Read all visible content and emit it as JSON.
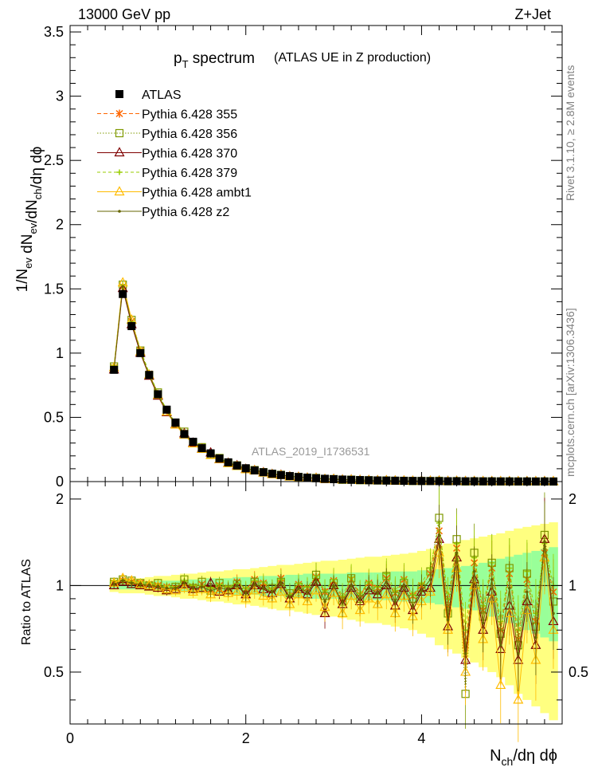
{
  "header": {
    "left": "13000 GeV pp",
    "right": "Z+Jet"
  },
  "side": {
    "rivet": "Rivet 3.1.10, ≥ 2.8M events",
    "mcplots": "mcplots.cern.ch [arXiv:1306.3436]"
  },
  "colors": {
    "data": "#000000",
    "band_outer": "#ffff80",
    "band_inner": "#99ff99",
    "s355": "#ff6600",
    "s356": "#7f9900",
    "s370": "#7f0000",
    "s379": "#99cc00",
    "ambt1": "#ffbb00",
    "z2": "#666600"
  },
  "chart_data": {
    "type": "line",
    "title_main": "p",
    "title_sub": "T",
    "title_rest": " spectrum",
    "subtitle": "(ATLAS UE in Z production)",
    "watermark": "ATLAS_2019_I1736531",
    "xlabel": {
      "main": "N",
      "sub": "ch",
      "rest": "/dη dϕ"
    },
    "ylabel": "1/N_ev dN_ev/dN_ch/dη dϕ",
    "ratio_ylabel": "Ratio to ATLAS",
    "xlim": [
      0,
      5.6
    ],
    "ylim": [
      0,
      3.55
    ],
    "ratio_ylim": [
      0.33,
      2.3
    ],
    "xticks": [
      "0",
      "2",
      "4"
    ],
    "yticks": [
      "0",
      "0.5",
      "1",
      "1.5",
      "2",
      "2.5",
      "3",
      "3.5"
    ],
    "ratio_yticks": [
      "0.5",
      "1",
      "2"
    ],
    "legend": [
      "ATLAS",
      "Pythia 6.428 355",
      "Pythia 6.428 356",
      "Pythia 6.428 370",
      "Pythia 6.428 379",
      "Pythia 6.428 ambt1",
      "Pythia 6.428 z2"
    ],
    "x": [
      0.5,
      0.6,
      0.7,
      0.8,
      0.9,
      1.0,
      1.1,
      1.2,
      1.3,
      1.4,
      1.5,
      1.6,
      1.7,
      1.8,
      1.9,
      2.0,
      2.1,
      2.2,
      2.3,
      2.4,
      2.5,
      2.6,
      2.7,
      2.8,
      2.9,
      3.0,
      3.1,
      3.2,
      3.3,
      3.4,
      3.5,
      3.6,
      3.7,
      3.8,
      3.9,
      4.0,
      4.1,
      4.2,
      4.3,
      4.4,
      4.5,
      4.6,
      4.7,
      4.8,
      4.9,
      5.0,
      5.1,
      5.2,
      5.3,
      5.4,
      5.5
    ],
    "atlas": [
      0.87,
      1.46,
      1.21,
      1.0,
      0.83,
      0.68,
      0.56,
      0.46,
      0.37,
      0.31,
      0.26,
      0.22,
      0.18,
      0.15,
      0.125,
      0.104,
      0.087,
      0.073,
      0.061,
      0.051,
      0.043,
      0.036,
      0.031,
      0.026,
      0.022,
      0.019,
      0.016,
      0.014,
      0.012,
      0.0105,
      0.009,
      0.008,
      0.007,
      0.006,
      0.0052,
      0.0046,
      0.004,
      0.0035,
      0.0031,
      0.0027,
      0.0024,
      0.0021,
      0.0019,
      0.0017,
      0.0015,
      0.0013,
      0.0012,
      0.0011,
      0.001,
      0.0009,
      0.0008
    ],
    "band_inner": [
      0.03,
      0.03,
      0.03,
      0.03,
      0.03,
      0.04,
      0.04,
      0.04,
      0.05,
      0.05,
      0.05,
      0.06,
      0.06,
      0.06,
      0.07,
      0.07,
      0.07,
      0.08,
      0.08,
      0.08,
      0.09,
      0.09,
      0.1,
      0.1,
      0.1,
      0.1,
      0.1,
      0.11,
      0.11,
      0.11,
      0.11,
      0.11,
      0.12,
      0.12,
      0.12,
      0.13,
      0.13,
      0.14,
      0.15,
      0.16,
      0.17,
      0.18,
      0.2,
      0.22,
      0.24,
      0.26,
      0.28,
      0.3,
      0.32,
      0.34,
      0.36
    ],
    "band_outer": [
      0.05,
      0.06,
      0.06,
      0.06,
      0.07,
      0.08,
      0.08,
      0.09,
      0.1,
      0.1,
      0.11,
      0.12,
      0.12,
      0.13,
      0.14,
      0.14,
      0.15,
      0.16,
      0.17,
      0.18,
      0.18,
      0.19,
      0.2,
      0.21,
      0.22,
      0.22,
      0.23,
      0.24,
      0.25,
      0.26,
      0.26,
      0.27,
      0.28,
      0.29,
      0.3,
      0.32,
      0.34,
      0.38,
      0.4,
      0.42,
      0.44,
      0.46,
      0.48,
      0.5,
      0.52,
      0.55,
      0.58,
      0.6,
      0.62,
      0.64,
      0.66
    ],
    "series": [
      {
        "name": "Pythia 6.428 355",
        "color_key": "s355",
        "marker": "star",
        "dash": "5,3",
        "ratio": [
          1.02,
          1.04,
          1.03,
          1.02,
          1.01,
          1.0,
          0.99,
          0.98,
          1.02,
          0.99,
          1.01,
          0.97,
          1.0,
          0.98,
          1.03,
          0.97,
          1.05,
          1.02,
          0.96,
          1.06,
          0.92,
          1.01,
          0.98,
          1.07,
          0.95,
          1.04,
          0.9,
          1.05,
          0.93,
          1.02,
          0.98,
          1.06,
          0.94,
          1.05,
          0.92,
          1.0,
          1.1,
          1.55,
          0.85,
          1.35,
          0.62,
          1.2,
          0.82,
          1.15,
          0.7,
          1.1,
          0.65,
          1.05,
          0.75,
          1.3,
          0.95
        ]
      },
      {
        "name": "Pythia 6.428 356",
        "color_key": "s356",
        "marker": "square",
        "dash": "1.5,2",
        "ratio": [
          1.03,
          1.05,
          1.04,
          1.02,
          1.0,
          1.02,
          0.97,
          0.99,
          1.05,
          0.98,
          1.03,
          0.96,
          1.02,
          0.97,
          1.01,
          0.95,
          1.03,
          1.0,
          0.98,
          1.03,
          0.94,
          0.99,
          0.96,
          1.09,
          0.92,
          1.02,
          0.88,
          1.06,
          0.9,
          1.0,
          0.96,
          1.08,
          0.92,
          1.02,
          0.9,
          0.98,
          1.12,
          1.72,
          0.8,
          1.45,
          0.42,
          1.3,
          0.78,
          1.2,
          0.68,
          1.15,
          0.62,
          1.1,
          0.72,
          1.5,
          0.88
        ]
      },
      {
        "name": "Pythia 6.428 370",
        "color_key": "s370",
        "marker": "triangle",
        "dash": "",
        "ratio": [
          1.0,
          1.03,
          1.01,
          1.0,
          0.99,
          0.98,
          0.96,
          0.97,
          1.01,
          0.97,
          0.98,
          1.02,
          0.95,
          0.96,
          1.0,
          0.93,
          1.0,
          0.97,
          0.94,
          1.01,
          0.9,
          0.97,
          0.93,
          1.03,
          0.8,
          1.0,
          0.86,
          0.98,
          0.88,
          0.96,
          0.93,
          1.0,
          0.85,
          0.98,
          0.82,
          0.95,
          0.98,
          1.45,
          0.72,
          1.25,
          0.55,
          1.05,
          0.7,
          0.95,
          0.6,
          0.85,
          0.55,
          0.88,
          0.62,
          1.45,
          0.75
        ]
      },
      {
        "name": "Pythia 6.428 379",
        "color_key": "s379",
        "marker": "plus",
        "dash": "4,3",
        "ratio": [
          1.04,
          1.05,
          1.03,
          1.03,
          1.02,
          1.01,
          1.0,
          0.99,
          1.04,
          1.0,
          1.0,
          0.98,
          1.01,
          0.99,
          1.02,
          0.98,
          1.04,
          1.03,
          0.97,
          1.05,
          0.93,
          1.02,
          0.99,
          1.08,
          0.96,
          1.05,
          0.92,
          1.07,
          0.94,
          1.03,
          0.99,
          1.1,
          0.96,
          1.06,
          0.93,
          1.02,
          1.15,
          1.65,
          0.9,
          1.4,
          0.7,
          1.25,
          0.85,
          1.2,
          0.75,
          1.15,
          0.7,
          1.12,
          0.8,
          1.4,
          1.0
        ]
      },
      {
        "name": "Pythia 6.428 ambt1",
        "color_key": "ambt1",
        "marker": "triangle",
        "dash": "",
        "ratio": [
          1.02,
          1.06,
          1.04,
          1.01,
          1.0,
          0.99,
          0.97,
          0.96,
          0.98,
          0.95,
          0.97,
          0.93,
          0.96,
          0.94,
          0.95,
          0.9,
          0.96,
          0.92,
          0.9,
          0.95,
          0.86,
          0.93,
          0.88,
          0.96,
          0.84,
          0.94,
          0.8,
          0.92,
          0.82,
          0.9,
          0.86,
          0.93,
          0.8,
          0.92,
          0.78,
          0.88,
          0.95,
          1.3,
          0.7,
          1.15,
          0.5,
          1.0,
          0.65,
          0.9,
          0.45,
          0.8,
          0.4,
          0.82,
          0.55,
          1.25,
          0.7
        ]
      },
      {
        "name": "Pythia 6.428 z2",
        "color_key": "z2",
        "marker": "dot",
        "dash": "",
        "ratio": [
          1.01,
          1.04,
          1.02,
          1.01,
          1.0,
          0.99,
          0.98,
          0.98,
          1.02,
          0.98,
          0.99,
          0.96,
          0.98,
          0.97,
          1.0,
          0.94,
          1.01,
          0.98,
          0.95,
          1.02,
          0.91,
          0.98,
          0.95,
          1.04,
          0.88,
          1.0,
          0.87,
          1.0,
          0.9,
          0.98,
          0.94,
          1.03,
          0.88,
          1.0,
          0.85,
          0.96,
          1.05,
          1.5,
          0.76,
          1.3,
          0.58,
          1.12,
          0.74,
          1.05,
          0.62,
          0.98,
          0.58,
          0.95,
          0.66,
          1.42,
          0.8
        ]
      }
    ]
  }
}
